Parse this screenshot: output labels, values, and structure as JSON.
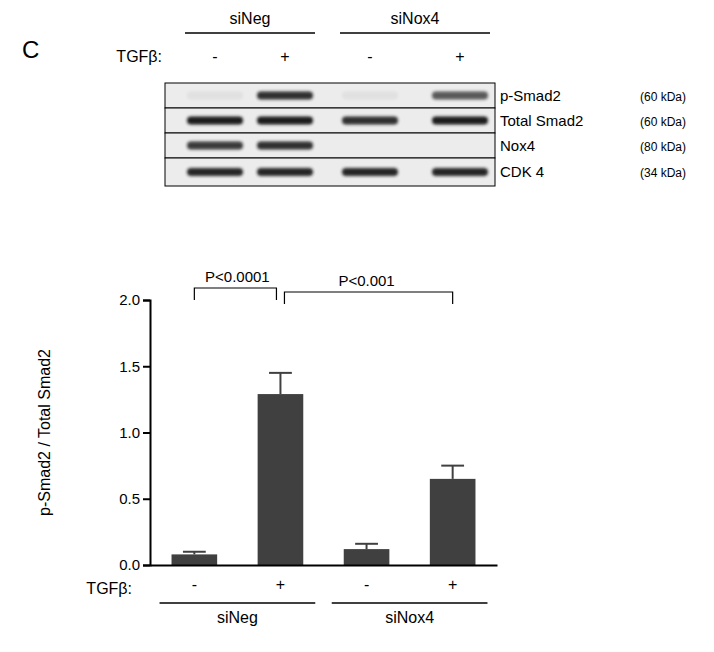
{
  "panel_label": "C",
  "blot": {
    "treatment_label": "TGFβ:",
    "lanes": [
      "-",
      "+",
      "-",
      "+"
    ],
    "groups": [
      {
        "name": "siNeg",
        "lanes": [
          0,
          1
        ]
      },
      {
        "name": "siNox4",
        "lanes": [
          2,
          3
        ]
      }
    ],
    "rows": [
      {
        "name": "p-Smad2",
        "size": "(60 kDa)",
        "intensity": [
          0.05,
          0.9,
          0.05,
          0.7
        ]
      },
      {
        "name": "Total Smad2",
        "size": "(60 kDa)",
        "intensity": [
          1,
          1,
          0.9,
          1
        ]
      },
      {
        "name": "Nox4",
        "size": "(80 kDa)",
        "intensity": [
          0.85,
          0.9,
          0,
          0
        ]
      },
      {
        "name": "CDK 4",
        "size": "(34 kDa)",
        "intensity": [
          0.95,
          0.95,
          0.95,
          0.95
        ]
      }
    ]
  },
  "chart_data": {
    "type": "bar",
    "y_label": "p-Smad2 / Total Smad2",
    "category_label": "TGFβ:",
    "categories": [
      "-",
      "+",
      "-",
      "+"
    ],
    "values": [
      0.08,
      1.29,
      0.12,
      0.65
    ],
    "errors": [
      0.02,
      0.16,
      0.04,
      0.1
    ],
    "color": "#404040",
    "groups": [
      {
        "name": "siNeg",
        "categories": [
          0,
          1
        ]
      },
      {
        "name": "siNox4",
        "categories": [
          2,
          3
        ]
      }
    ],
    "annotations": [
      {
        "text": "P<0.0001",
        "from": 0,
        "to": 1
      },
      {
        "text": "P<0.001",
        "from": 1,
        "to": 3
      }
    ],
    "ylim": [
      0,
      2.0
    ],
    "yticks": [
      {
        "value": 0,
        "label": "0.0"
      },
      {
        "value": 0.5,
        "label": "0.5"
      },
      {
        "value": 1.0,
        "label": "1.0"
      },
      {
        "value": 1.5,
        "label": "1.5"
      },
      {
        "value": 2.0,
        "label": "2.0"
      }
    ],
    "grid": false
  }
}
